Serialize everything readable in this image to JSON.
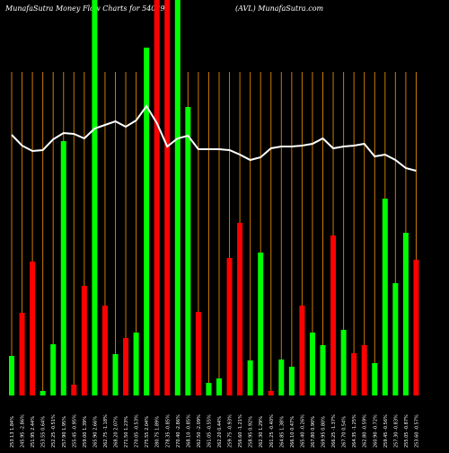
{
  "chart_data": {
    "type": "bar",
    "title": "MunafaSutra  Money Flow  Charts for 540293",
    "subtitle": "(AVL) MunafaSutra.com",
    "categories": [
      "253.13 1.84%",
      "245.95 -2.86%",
      "251.95 2.44%",
      "253.55 0.64%",
      "252.25 -0.51%",
      "257.90 1.95%",
      "255.45 -0.95%",
      "259.00 1.39%",
      "265.90 2.66%",
      "262.75 -1.18%",
      "268.20 2.07%",
      "271.50 1.23%",
      "270.05 -0.53%",
      "275.55 2.04%",
      "280.75 1.89%",
      "278.35 -0.85%",
      "270.40 -2.86%",
      "268.10 -0.85%",
      "262.50 -2.09%",
      "261.05 -0.55%",
      "262.20 0.44%",
      "259.75 -0.93%",
      "256.60 -1.21%",
      "258.95 0.92%",
      "262.30 1.29%",
      "261.25 -0.40%",
      "264.85 1.38%",
      "266.10 0.47%",
      "265.40 -0.26%",
      "267.80 0.90%",
      "269.95 0.80%",
      "266.25 -1.37%",
      "267.70 0.54%",
      "264.35 -1.25%",
      "262.80 -0.59%",
      "260.90 -0.72%",
      "259.45 -0.56%",
      "257.30 -0.83%",
      "255.05 -0.87%",
      "253.60 -0.57%"
    ],
    "values": [
      44,
      92,
      149,
      5,
      57,
      283,
      12,
      122,
      440,
      100,
      46,
      64,
      70,
      387,
      440,
      440,
      440,
      321,
      93,
      14,
      19,
      153,
      192,
      39,
      159,
      5,
      40,
      32,
      100,
      70,
      56,
      178,
      73,
      47,
      56,
      36,
      219,
      125,
      181,
      151
    ],
    "bar_colors": [
      "#00ff00",
      "#ff0000",
      "#ff0000",
      "#00ff00",
      "#00ff00",
      "#00ff00",
      "#ff0000",
      "#ff0000",
      "#00ff00",
      "#ff0000",
      "#00ff00",
      "#ff0000",
      "#00ff00",
      "#00ff00",
      "#ff0000",
      "#ff0000",
      "#00ff00",
      "#00ff00",
      "#ff0000",
      "#00ff00",
      "#00ff00",
      "#ff0000",
      "#ff0000",
      "#00ff00",
      "#00ff00",
      "#ff0000",
      "#00ff00",
      "#00ff00",
      "#ff0000",
      "#00ff00",
      "#00ff00",
      "#ff0000",
      "#00ff00",
      "#ff0000",
      "#ff0000",
      "#00ff00",
      "#00ff00",
      "#00ff00",
      "#00ff00",
      "#ff0000"
    ],
    "line": {
      "color": "#ffffff",
      "values": [
        290,
        278,
        272,
        273,
        285,
        292,
        291,
        286,
        297,
        301,
        305,
        299,
        306,
        322,
        303,
        277,
        286,
        289,
        274,
        274,
        274,
        273,
        268,
        262,
        265,
        275,
        277,
        277,
        278,
        280,
        286,
        275,
        277,
        278,
        280,
        266,
        268,
        262,
        253,
        250
      ]
    },
    "gridline_color": "#cc7a00",
    "ylim": [
      0,
      440
    ]
  }
}
